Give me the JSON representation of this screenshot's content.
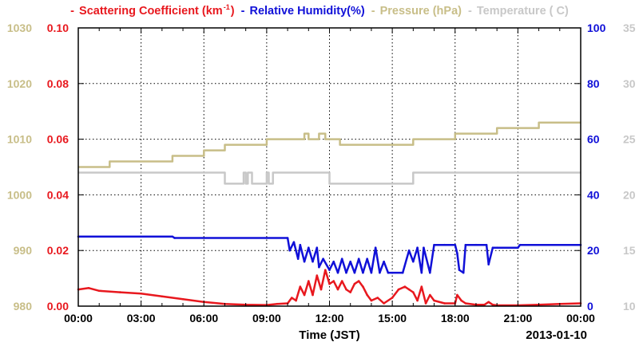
{
  "chart_data": {
    "type": "line",
    "date_label": "2013-01-10",
    "xlabel": "Time (JST)",
    "x_ticks": [
      "00:00",
      "03:00",
      "06:00",
      "09:00",
      "12:00",
      "15:00",
      "18:00",
      "21:00",
      "00:00"
    ],
    "x_hours": [
      0,
      3,
      6,
      9,
      12,
      15,
      18,
      21,
      24
    ],
    "grid": true,
    "legend": {
      "placement": "top",
      "items": [
        {
          "marker": "-",
          "text": "Scattering Coefficient (km",
          "sup": "-1",
          "tail": ")",
          "color": "#e8181e"
        },
        {
          "marker": "-",
          "text": "Relative Humidity(%)",
          "color": "#1010d8"
        },
        {
          "marker": "-",
          "text": "Pressure (hPa)",
          "color": "#c8be88"
        },
        {
          "marker": "-",
          "text": "Temperature ( C)",
          "color": "#c8c8c8"
        }
      ]
    },
    "axes": {
      "pressure": {
        "side": "left-outer",
        "color": "#c8be88",
        "ylim": [
          980,
          1030
        ],
        "ticks": [
          "980",
          "990",
          "1000",
          "1010",
          "1020",
          "1030"
        ]
      },
      "scattering": {
        "side": "left-inner",
        "color": "#e8181e",
        "ylim": [
          0,
          0.1
        ],
        "ticks": [
          "0.00",
          "0.02",
          "0.04",
          "0.06",
          "0.08",
          "0.10"
        ]
      },
      "humidity": {
        "side": "right-inner",
        "color": "#1010d8",
        "ylim": [
          0,
          100
        ],
        "ticks": [
          "0",
          "20",
          "40",
          "60",
          "80",
          "100"
        ]
      },
      "temperature": {
        "side": "right-outer",
        "color": "#c8c8c8",
        "ylim": [
          10,
          35
        ],
        "ticks": [
          "10",
          "15",
          "20",
          "25",
          "30",
          "35"
        ]
      }
    },
    "series": [
      {
        "name": "Pressure (hPa)",
        "axis": "pressure",
        "color": "#c8be88",
        "step": true,
        "x": [
          0,
          1,
          1.5,
          3,
          3.5,
          4.5,
          5,
          6,
          6.5,
          7,
          7.5,
          8,
          8.5,
          9,
          10,
          10.8,
          11,
          11.5,
          11.8,
          12.5,
          15,
          16,
          17,
          18,
          19,
          20,
          21,
          22,
          23,
          24
        ],
        "y": [
          1005,
          1005,
          1006,
          1006,
          1006,
          1007,
          1007,
          1008,
          1008,
          1009,
          1009,
          1009,
          1009,
          1010,
          1010,
          1011,
          1010,
          1011,
          1010,
          1009,
          1009,
          1010,
          1010,
          1011,
          1011,
          1012,
          1012,
          1013,
          1013,
          1013
        ]
      },
      {
        "name": "Temperature ( C)",
        "axis": "temperature",
        "color": "#c8c8c8",
        "step": true,
        "x": [
          0,
          6.3,
          7.0,
          7.9,
          8.0,
          8.1,
          8.3,
          8.4,
          9.0,
          9.1,
          9.3,
          10.0,
          12.0,
          14.0,
          16.0,
          24
        ],
        "y": [
          22,
          22,
          21,
          22,
          21,
          22,
          21,
          21,
          22,
          21,
          22,
          22,
          21,
          21,
          22,
          22
        ]
      },
      {
        "name": "Relative Humidity(%)",
        "axis": "humidity",
        "color": "#1010d8",
        "step": false,
        "x": [
          0,
          4.5,
          4.6,
          10.0,
          10.1,
          10.3,
          10.5,
          10.6,
          10.8,
          11.0,
          11.2,
          11.4,
          11.5,
          11.7,
          12.0,
          12.2,
          12.4,
          12.6,
          12.8,
          13.0,
          13.2,
          13.4,
          13.6,
          13.8,
          14.0,
          14.2,
          14.4,
          14.6,
          14.8,
          15.0,
          15.5,
          15.8,
          16.0,
          16.2,
          16.4,
          16.5,
          16.8,
          17.0,
          17.5,
          18.0,
          18.1,
          18.2,
          18.4,
          18.5,
          19.0,
          19.5,
          19.6,
          19.8,
          20.0,
          21.0,
          21.1,
          24
        ],
        "y": [
          25,
          25,
          24.5,
          24.5,
          20,
          23,
          17,
          22,
          16,
          21,
          16,
          21,
          14,
          17,
          13,
          16,
          12,
          17,
          12,
          16,
          12,
          17,
          12,
          17,
          12,
          21,
          12,
          16,
          12,
          12,
          12,
          20,
          16,
          21,
          12,
          21,
          12,
          22,
          22,
          22,
          19,
          13,
          12,
          22,
          22,
          22,
          15,
          21,
          21,
          21,
          22,
          22
        ]
      },
      {
        "name": "Scattering Coefficient (km-1)",
        "axis": "scattering",
        "color": "#e8181e",
        "step": false,
        "x": [
          0,
          0.5,
          1,
          2,
          3,
          4,
          5,
          6,
          7,
          8,
          9,
          9.5,
          10.0,
          10.2,
          10.4,
          10.6,
          10.8,
          11.0,
          11.2,
          11.4,
          11.6,
          11.8,
          12.0,
          12.2,
          12.4,
          12.6,
          12.8,
          13.0,
          13.2,
          13.4,
          13.6,
          13.8,
          14.0,
          14.3,
          14.6,
          15.0,
          15.3,
          15.6,
          15.8,
          16.0,
          16.2,
          16.4,
          16.6,
          16.8,
          17.0,
          17.5,
          18.0,
          18.1,
          18.3,
          18.5,
          19.0,
          19.4,
          19.6,
          19.8,
          20.0,
          21.0,
          22.0,
          23.0,
          24
        ],
        "y": [
          0.006,
          0.0065,
          0.0055,
          0.005,
          0.0045,
          0.0035,
          0.0025,
          0.0015,
          0.0008,
          0.0005,
          0.0004,
          0.0008,
          0.001,
          0.003,
          0.002,
          0.007,
          0.004,
          0.009,
          0.004,
          0.011,
          0.006,
          0.013,
          0.008,
          0.009,
          0.006,
          0.009,
          0.006,
          0.005,
          0.008,
          0.009,
          0.007,
          0.004,
          0.002,
          0.003,
          0.001,
          0.003,
          0.006,
          0.007,
          0.006,
          0.005,
          0.002,
          0.007,
          0.001,
          0.004,
          0.002,
          0.001,
          0.001,
          0.004,
          0.002,
          0.001,
          0.0005,
          0.0005,
          0.0015,
          0.0005,
          0.0003,
          0.0003,
          0.0005,
          0.0008,
          0.001
        ]
      }
    ]
  }
}
